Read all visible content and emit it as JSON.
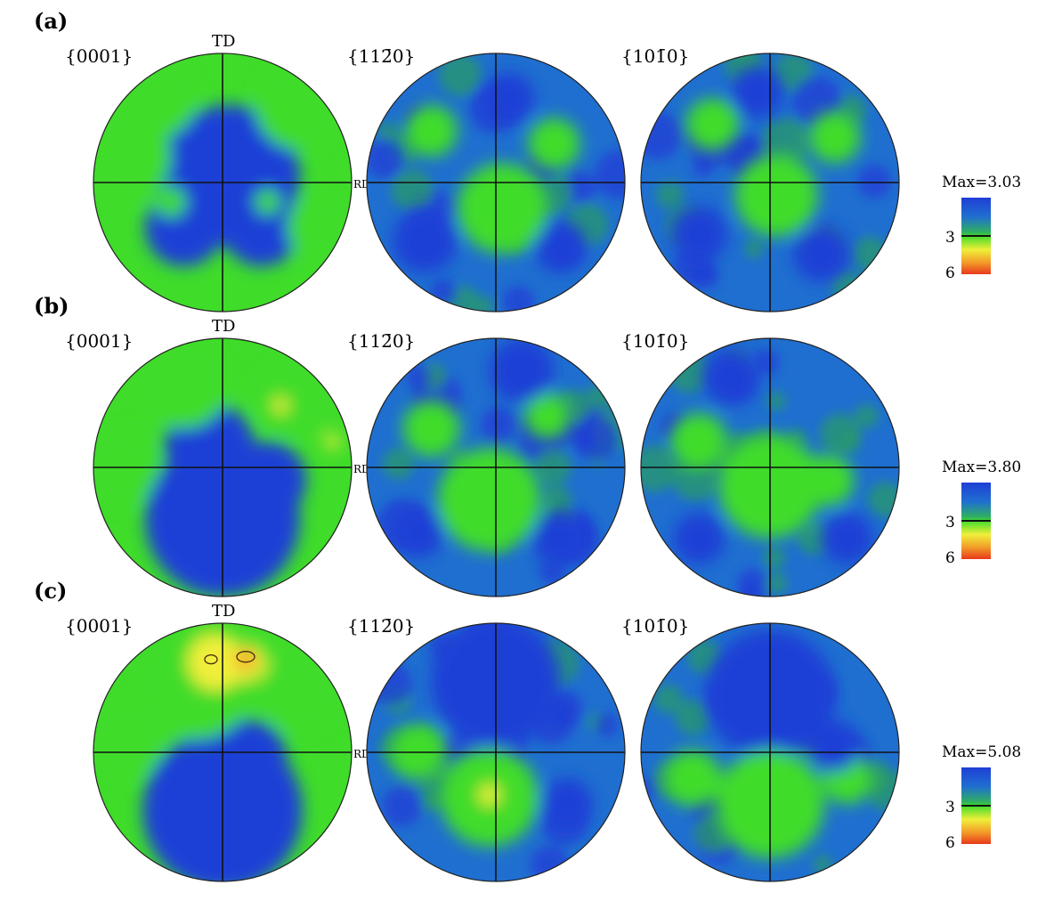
{
  "figure": {
    "rows": [
      {
        "label": "(a)",
        "max_text": "Max=3.03",
        "max_value": 3.03,
        "poles": [
          {
            "label": "{0001}",
            "figure_type": "0001",
            "show_td": true,
            "show_rd": true
          },
          {
            "label": "{11-20}",
            "figure_type": "1120",
            "show_td": false,
            "show_rd": false
          },
          {
            "label": "{10-10}",
            "figure_type": "1010",
            "show_td": false,
            "show_rd": false
          }
        ],
        "legend": {
          "tick_3": "3",
          "tick_6": "6"
        }
      },
      {
        "label": "(b)",
        "max_text": "Max=3.80",
        "max_value": 3.8,
        "poles": [
          {
            "label": "{0001}",
            "figure_type": "0001",
            "show_td": true,
            "show_rd": true
          },
          {
            "label": "{11-20}",
            "figure_type": "1120",
            "show_td": false,
            "show_rd": false
          },
          {
            "label": "{10-10}",
            "figure_type": "1010",
            "show_td": false,
            "show_rd": false
          }
        ],
        "legend": {
          "tick_3": "3",
          "tick_6": "6"
        }
      },
      {
        "label": "(c)",
        "max_text": "Max=5.08",
        "max_value": 5.08,
        "poles": [
          {
            "label": "{0001}",
            "figure_type": "0001",
            "show_td": true,
            "show_rd": true
          },
          {
            "label": "{11-20}",
            "figure_type": "1120",
            "show_td": false,
            "show_rd": false
          },
          {
            "label": "{10-10}",
            "figure_type": "1010",
            "show_td": false,
            "show_rd": false
          }
        ],
        "legend": {
          "tick_3": "3",
          "tick_6": "6"
        }
      }
    ],
    "td_label": "TD",
    "rd_label": "RD",
    "colors": {
      "low": "#1f3fd6",
      "mid_blue": "#1f6fd0",
      "teal": "#2a9a6a",
      "green": "#3fdc2a",
      "yellow": "#f0ef3a",
      "orange": "#f29a28",
      "red": "#e8381c"
    }
  }
}
